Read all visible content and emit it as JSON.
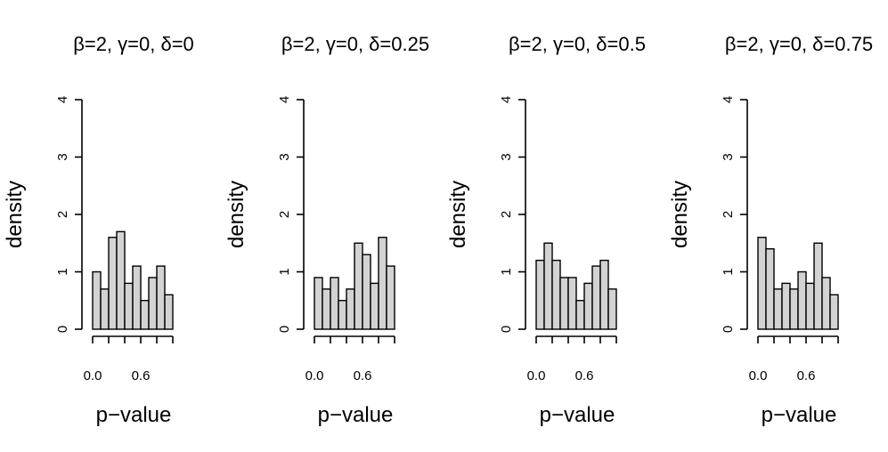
{
  "chart_data": [
    {
      "type": "bar",
      "title": "β=2, γ=0, δ=0",
      "xlabel": "p−value",
      "ylabel": "density",
      "bin_edges": [
        0.0,
        0.1,
        0.2,
        0.3,
        0.4,
        0.5,
        0.6,
        0.7,
        0.8,
        0.9
      ],
      "values": [
        1.0,
        0.7,
        1.6,
        1.7,
        0.8,
        1.1,
        0.5,
        0.9,
        1.1,
        0.6
      ],
      "xlim": [
        0,
        1
      ],
      "ylim": [
        0,
        4
      ],
      "x_ticks": [
        0.0,
        0.2,
        0.4,
        0.6,
        0.8,
        1.0
      ],
      "x_tick_labels": [
        "0.0",
        "",
        "",
        "0.6",
        "",
        ""
      ],
      "y_ticks": [
        0,
        1,
        2,
        3,
        4
      ],
      "y_tick_labels": [
        "0",
        "1",
        "2",
        "3",
        "4"
      ]
    },
    {
      "type": "bar",
      "title": "β=2, γ=0, δ=0.25",
      "xlabel": "p−value",
      "ylabel": "density",
      "bin_edges": [
        0.0,
        0.1,
        0.2,
        0.3,
        0.4,
        0.5,
        0.6,
        0.7,
        0.8,
        0.9
      ],
      "values": [
        0.9,
        0.7,
        0.9,
        0.5,
        0.7,
        1.5,
        1.3,
        0.8,
        1.6,
        1.1
      ],
      "xlim": [
        0,
        1
      ],
      "ylim": [
        0,
        4
      ],
      "x_ticks": [
        0.0,
        0.2,
        0.4,
        0.6,
        0.8,
        1.0
      ],
      "x_tick_labels": [
        "0.0",
        "",
        "",
        "0.6",
        "",
        ""
      ],
      "y_ticks": [
        0,
        1,
        2,
        3,
        4
      ],
      "y_tick_labels": [
        "0",
        "1",
        "2",
        "3",
        "4"
      ]
    },
    {
      "type": "bar",
      "title": "β=2, γ=0, δ=0.5",
      "xlabel": "p−value",
      "ylabel": "density",
      "bin_edges": [
        0.0,
        0.1,
        0.2,
        0.3,
        0.4,
        0.5,
        0.6,
        0.7,
        0.8,
        0.9
      ],
      "values": [
        1.2,
        1.5,
        1.2,
        0.9,
        0.9,
        0.5,
        0.8,
        1.1,
        1.2,
        0.7
      ],
      "xlim": [
        0,
        1
      ],
      "ylim": [
        0,
        4
      ],
      "x_ticks": [
        0.0,
        0.2,
        0.4,
        0.6,
        0.8,
        1.0
      ],
      "x_tick_labels": [
        "0.0",
        "",
        "",
        "0.6",
        "",
        ""
      ],
      "y_ticks": [
        0,
        1,
        2,
        3,
        4
      ],
      "y_tick_labels": [
        "0",
        "1",
        "2",
        "3",
        "4"
      ]
    },
    {
      "type": "bar",
      "title": "β=2, γ=0, δ=0.75",
      "xlabel": "p−value",
      "ylabel": "density",
      "bin_edges": [
        0.0,
        0.1,
        0.2,
        0.3,
        0.4,
        0.5,
        0.6,
        0.7,
        0.8,
        0.9
      ],
      "values": [
        1.6,
        1.4,
        0.7,
        0.8,
        0.7,
        1.0,
        0.8,
        1.5,
        0.9,
        0.6
      ],
      "xlim": [
        0,
        1
      ],
      "ylim": [
        0,
        4
      ],
      "x_ticks": [
        0.0,
        0.2,
        0.4,
        0.6,
        0.8,
        1.0
      ],
      "x_tick_labels": [
        "0.0",
        "",
        "",
        "0.6",
        "",
        ""
      ],
      "y_ticks": [
        0,
        1,
        2,
        3,
        4
      ],
      "y_tick_labels": [
        "0",
        "1",
        "2",
        "3",
        "4"
      ]
    }
  ]
}
